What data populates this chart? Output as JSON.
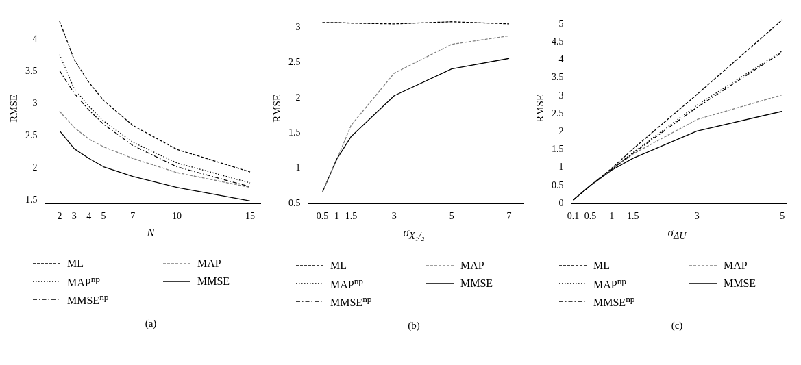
{
  "chart_data": [
    {
      "type": "line",
      "xlabel": "N",
      "ylabel": "RMSE",
      "x": [
        2,
        3,
        4,
        5,
        7,
        10,
        15
      ],
      "xlim": [
        1,
        15.7
      ],
      "xticks": [
        2,
        3,
        4,
        5,
        7,
        10,
        15
      ],
      "ylim": [
        1.45,
        4.4
      ],
      "yticks": [
        1.5,
        2,
        2.5,
        3,
        3.5,
        4
      ],
      "grid": false,
      "legend": "bottom",
      "marker": "none",
      "annotations": [
        "(a)"
      ],
      "series": [
        {
          "name": "ML",
          "color": "#000000",
          "line_style": "dashed",
          "values": [
            4.28,
            3.68,
            3.33,
            3.05,
            2.66,
            2.29,
            1.94
          ]
        },
        {
          "name": "MAP$^{np}$",
          "color": "#000000",
          "line_style": "dotted",
          "values": [
            3.76,
            3.23,
            2.96,
            2.73,
            2.4,
            2.08,
            1.77
          ]
        },
        {
          "name": "MMSE$^{np}$",
          "color": "#000000",
          "line_style": "dashdot",
          "values": [
            3.51,
            3.16,
            2.9,
            2.68,
            2.35,
            2.02,
            1.71
          ]
        },
        {
          "name": "MAP",
          "color": "#808080",
          "line_style": "dashed",
          "values": [
            2.88,
            2.63,
            2.45,
            2.33,
            2.15,
            1.93,
            1.7
          ]
        },
        {
          "name": "MMSE",
          "color": "#000000",
          "line_style": "solid",
          "values": [
            2.58,
            2.3,
            2.15,
            2.02,
            1.87,
            1.7,
            1.49
          ]
        }
      ]
    },
    {
      "type": "line",
      "xlabel": "σ$_{X₁/₂}$",
      "ylabel": "RMSE",
      "x": [
        0.5,
        1,
        1.5,
        3,
        5,
        7
      ],
      "xlim": [
        0,
        7.5
      ],
      "xticks": [
        0.5,
        1,
        1.5,
        3,
        5,
        7
      ],
      "ylim": [
        0.5,
        3.2
      ],
      "yticks": [
        0.5,
        1,
        1.5,
        2,
        2.5,
        3
      ],
      "grid": false,
      "legend": "bottom",
      "marker": "none",
      "annotations": [
        "(b)"
      ],
      "series": [
        {
          "name": "ML",
          "color": "#000000",
          "line_style": "dashed",
          "values": [
            3.07,
            3.07,
            3.06,
            3.05,
            3.08,
            3.05
          ]
        },
        {
          "name": "MAP$^{np}$",
          "color": "#000000",
          "line_style": "dotted",
          "values": [
            null,
            null,
            null,
            null,
            null,
            null
          ]
        },
        {
          "name": "MMSE$^{np}$",
          "color": "#000000",
          "line_style": "dashdot",
          "values": [
            null,
            null,
            null,
            null,
            null,
            null
          ]
        },
        {
          "name": "MAP",
          "color": "#808080",
          "line_style": "dashed",
          "values": [
            0.66,
            1.12,
            1.61,
            2.35,
            2.76,
            2.88
          ]
        },
        {
          "name": "MMSE",
          "color": "#000000",
          "line_style": "solid",
          "values": [
            0.66,
            1.13,
            1.45,
            2.03,
            2.41,
            2.56
          ]
        }
      ]
    },
    {
      "type": "line",
      "xlabel": "σ$_{ΔU}$",
      "ylabel": "RMSE",
      "x": [
        0.1,
        0.5,
        1,
        1.5,
        3,
        5
      ],
      "xlim": [
        0.05,
        5.1
      ],
      "xticks": [
        0.1,
        0.5,
        1,
        1.5,
        3,
        5
      ],
      "ylim": [
        0,
        5.3
      ],
      "yticks": [
        0,
        0.5,
        1,
        1.5,
        2,
        2.5,
        3,
        3.5,
        4,
        4.5,
        5
      ],
      "grid": false,
      "legend": "bottom",
      "marker": "none",
      "annotations": [
        "(c)"
      ],
      "series": [
        {
          "name": "ML",
          "color": "#000000",
          "line_style": "dashed",
          "values": [
            0.1,
            0.5,
            0.98,
            1.52,
            3.04,
            5.12
          ]
        },
        {
          "name": "MAP$^{np}$",
          "color": "#000000",
          "line_style": "dotted",
          "values": [
            0.1,
            0.5,
            0.95,
            1.42,
            2.74,
            4.25
          ]
        },
        {
          "name": "MMSE$^{np}$",
          "color": "#000000",
          "line_style": "dashdot",
          "values": [
            0.1,
            0.5,
            0.95,
            1.4,
            2.68,
            4.22
          ]
        },
        {
          "name": "MAP",
          "color": "#808080",
          "line_style": "dashed",
          "values": [
            0.1,
            0.5,
            0.94,
            1.38,
            2.34,
            3.03
          ]
        },
        {
          "name": "MMSE",
          "color": "#000000",
          "line_style": "solid",
          "values": [
            0.1,
            0.5,
            0.93,
            1.26,
            2.02,
            2.57
          ]
        }
      ]
    }
  ]
}
